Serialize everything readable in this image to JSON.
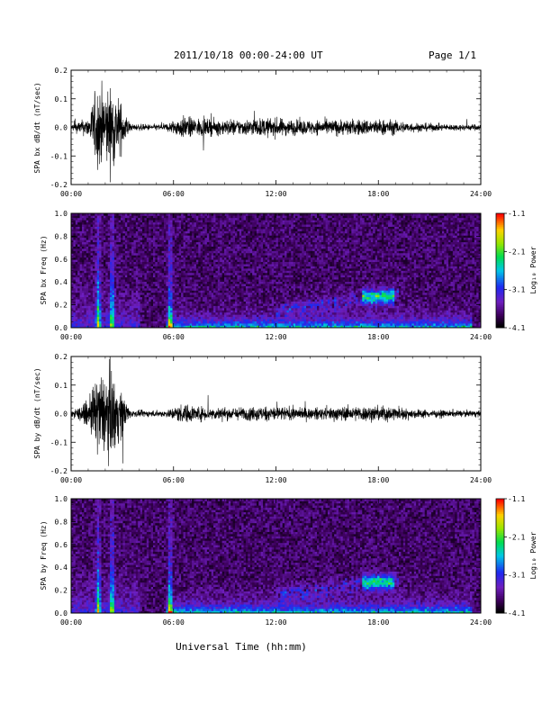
{
  "header": {
    "date_range": "2011/10/18  00:00-24:00 UT",
    "page": "Page 1/1"
  },
  "xlabel": "Universal Time (hh:mm)",
  "colorbar": {
    "label": "Log₁₀ Power",
    "ticks": [
      "-1.1",
      "-2.1",
      "-3.1",
      "-4.1"
    ],
    "range": [
      -4.1,
      -1.1
    ]
  },
  "chart_data": [
    {
      "type": "line",
      "ylabel": "SPA bx dB/dt (nT/sec)",
      "xlabel": "",
      "x_ticks": [
        "00:00",
        "06:00",
        "12:00",
        "18:00",
        "24:00"
      ],
      "y_ticks": [
        "0.2",
        "0.1",
        "0.0",
        "-0.1",
        "-0.2"
      ],
      "xlim": [
        0,
        24
      ],
      "ylim": [
        -0.2,
        0.2
      ],
      "series": [
        {
          "color": "#000000",
          "hours": [
            0,
            1,
            1.5,
            2.5,
            3.5,
            5.5,
            6.5,
            8,
            10,
            11.8,
            12.8,
            14,
            16,
            18.5,
            20,
            22,
            24
          ],
          "amplitude": [
            0.02,
            0.06,
            0.25,
            0.25,
            0.02,
            0.02,
            0.07,
            0.05,
            0.05,
            0.06,
            0.05,
            0.045,
            0.05,
            0.05,
            0.03,
            0.02,
            0.02
          ]
        }
      ]
    },
    {
      "type": "heatmap",
      "ylabel": "SPA bx Freq (Hz)",
      "xlabel": "",
      "x_ticks": [
        "00:00",
        "06:00",
        "12:00",
        "18:00",
        "24:00"
      ],
      "y_ticks": [
        "1.0",
        "0.8",
        "0.6",
        "0.4",
        "0.2",
        "0.0"
      ],
      "xlim": [
        0,
        24
      ],
      "ylim": [
        0.0,
        1.0
      ],
      "z_label": "Log₁₀ Power",
      "z_range": [
        -4.1,
        -1.1
      ],
      "bursts_hours": [
        1.6,
        2.4,
        5.8
      ]
    },
    {
      "type": "line",
      "ylabel": "SPA by dB/dt (nT/sec)",
      "xlabel": "",
      "x_ticks": [
        "00:00",
        "06:00",
        "12:00",
        "18:00",
        "24:00"
      ],
      "y_ticks": [
        "0.2",
        "0.1",
        "0.0",
        "-0.1",
        "-0.2"
      ],
      "xlim": [
        0,
        24
      ],
      "ylim": [
        -0.2,
        0.2
      ],
      "series": [
        {
          "color": "#000000",
          "hours": [
            0,
            1,
            1.5,
            2.5,
            3.5,
            5.5,
            6.5,
            8,
            10,
            11.8,
            12.8,
            14,
            16,
            18.5,
            20,
            22,
            24
          ],
          "amplitude": [
            0.02,
            0.07,
            0.25,
            0.25,
            0.02,
            0.02,
            0.06,
            0.04,
            0.04,
            0.05,
            0.04,
            0.035,
            0.045,
            0.05,
            0.03,
            0.02,
            0.02
          ]
        }
      ]
    },
    {
      "type": "heatmap",
      "ylabel": "SPA by Freq (Hz)",
      "xlabel": "",
      "x_ticks": [
        "00:00",
        "06:00",
        "12:00",
        "18:00",
        "24:00"
      ],
      "y_ticks": [
        "1.0",
        "0.8",
        "0.6",
        "0.4",
        "0.2",
        "0.0"
      ],
      "xlim": [
        0,
        24
      ],
      "ylim": [
        0.0,
        1.0
      ],
      "z_label": "Log₁₀ Power",
      "z_range": [
        -4.1,
        -1.1
      ],
      "bursts_hours": [
        1.6,
        2.4,
        5.8
      ]
    }
  ]
}
